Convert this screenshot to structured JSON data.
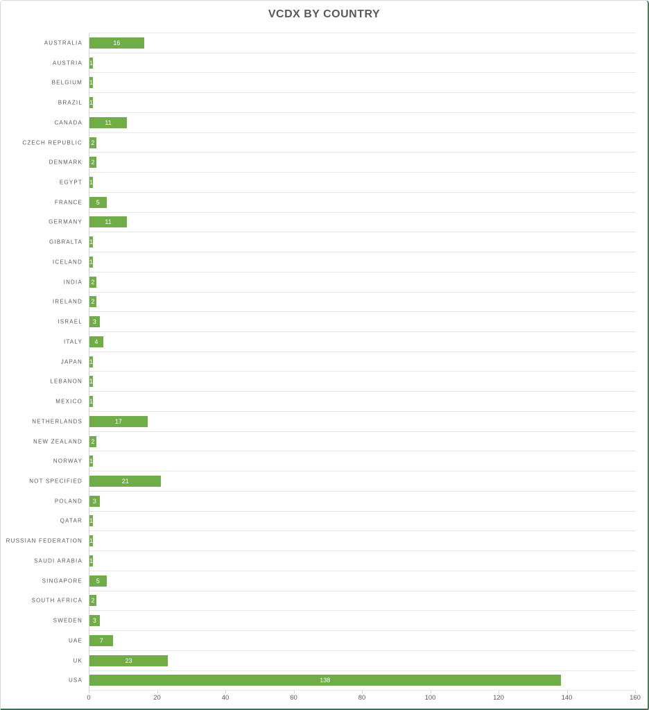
{
  "window": {
    "title": "VCDX BY COUNTRY"
  },
  "colors": {
    "bar": "#70AD47",
    "value_label": "#FFFFFF",
    "gridline": "#E7E7E7",
    "axis_line": "#D2D2D2",
    "text": "#595959",
    "frame_edge_green": "#3F6F50"
  },
  "chart_data": {
    "type": "bar",
    "orientation": "horizontal",
    "title": "VCDX BY COUNTRY",
    "xlabel": "",
    "ylabel": "",
    "xlim": [
      0,
      160
    ],
    "x_ticks": [
      0,
      20,
      40,
      60,
      80,
      100,
      120,
      140,
      160
    ],
    "grid": true,
    "legend": false,
    "data_labels": "center-inside-white",
    "categories": [
      "AUSTRALIA",
      "AUSTRIA",
      "BELGIUM",
      "BRAZIL",
      "CANADA",
      "CZECH REPUBLIC",
      "DENMARK",
      "EGYPT",
      "FRANCE",
      "GERMANY",
      "GIBRALTA",
      "ICELAND",
      "INDIA",
      "IRELAND",
      "ISRAEL",
      "ITALY",
      "JAPAN",
      "LEBANON",
      "MEXICO",
      "NETHERLANDS",
      "NEW ZEALAND",
      "NORWAY",
      "NOT SPECIFIED",
      "POLAND",
      "QATAR",
      "RUSSIAN FEDERATION",
      "SAUDI ARABIA",
      "SINGAPORE",
      "SOUTH AFRICA",
      "SWEDEN",
      "UAE",
      "UK",
      "USA"
    ],
    "values": [
      16,
      1,
      1,
      1,
      11,
      2,
      2,
      1,
      5,
      11,
      1,
      1,
      2,
      2,
      3,
      4,
      1,
      1,
      1,
      17,
      2,
      1,
      21,
      3,
      1,
      1,
      1,
      5,
      2,
      3,
      7,
      23,
      138
    ]
  }
}
